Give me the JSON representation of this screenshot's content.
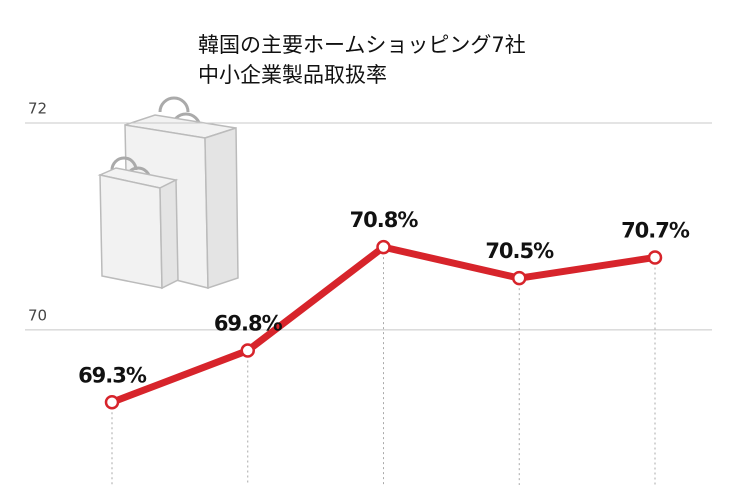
{
  "chart_data": {
    "type": "line",
    "title_lines": [
      "韓国の主要ホームショッピング7社",
      "中小企業製品取扱率"
    ],
    "categories": [
      null,
      null,
      null,
      null,
      null
    ],
    "series": [
      {
        "color": "#d7242b",
        "values": [
          69.3,
          69.8,
          70.8,
          70.5,
          70.7
        ],
        "value_labels": [
          "69.3%",
          "69.8%",
          "70.8%",
          "70.5%",
          "70.7%"
        ]
      }
    ],
    "ylim": [
      68.5,
      72.3
    ],
    "yticks": [
      70,
      72
    ],
    "grid": true
  }
}
